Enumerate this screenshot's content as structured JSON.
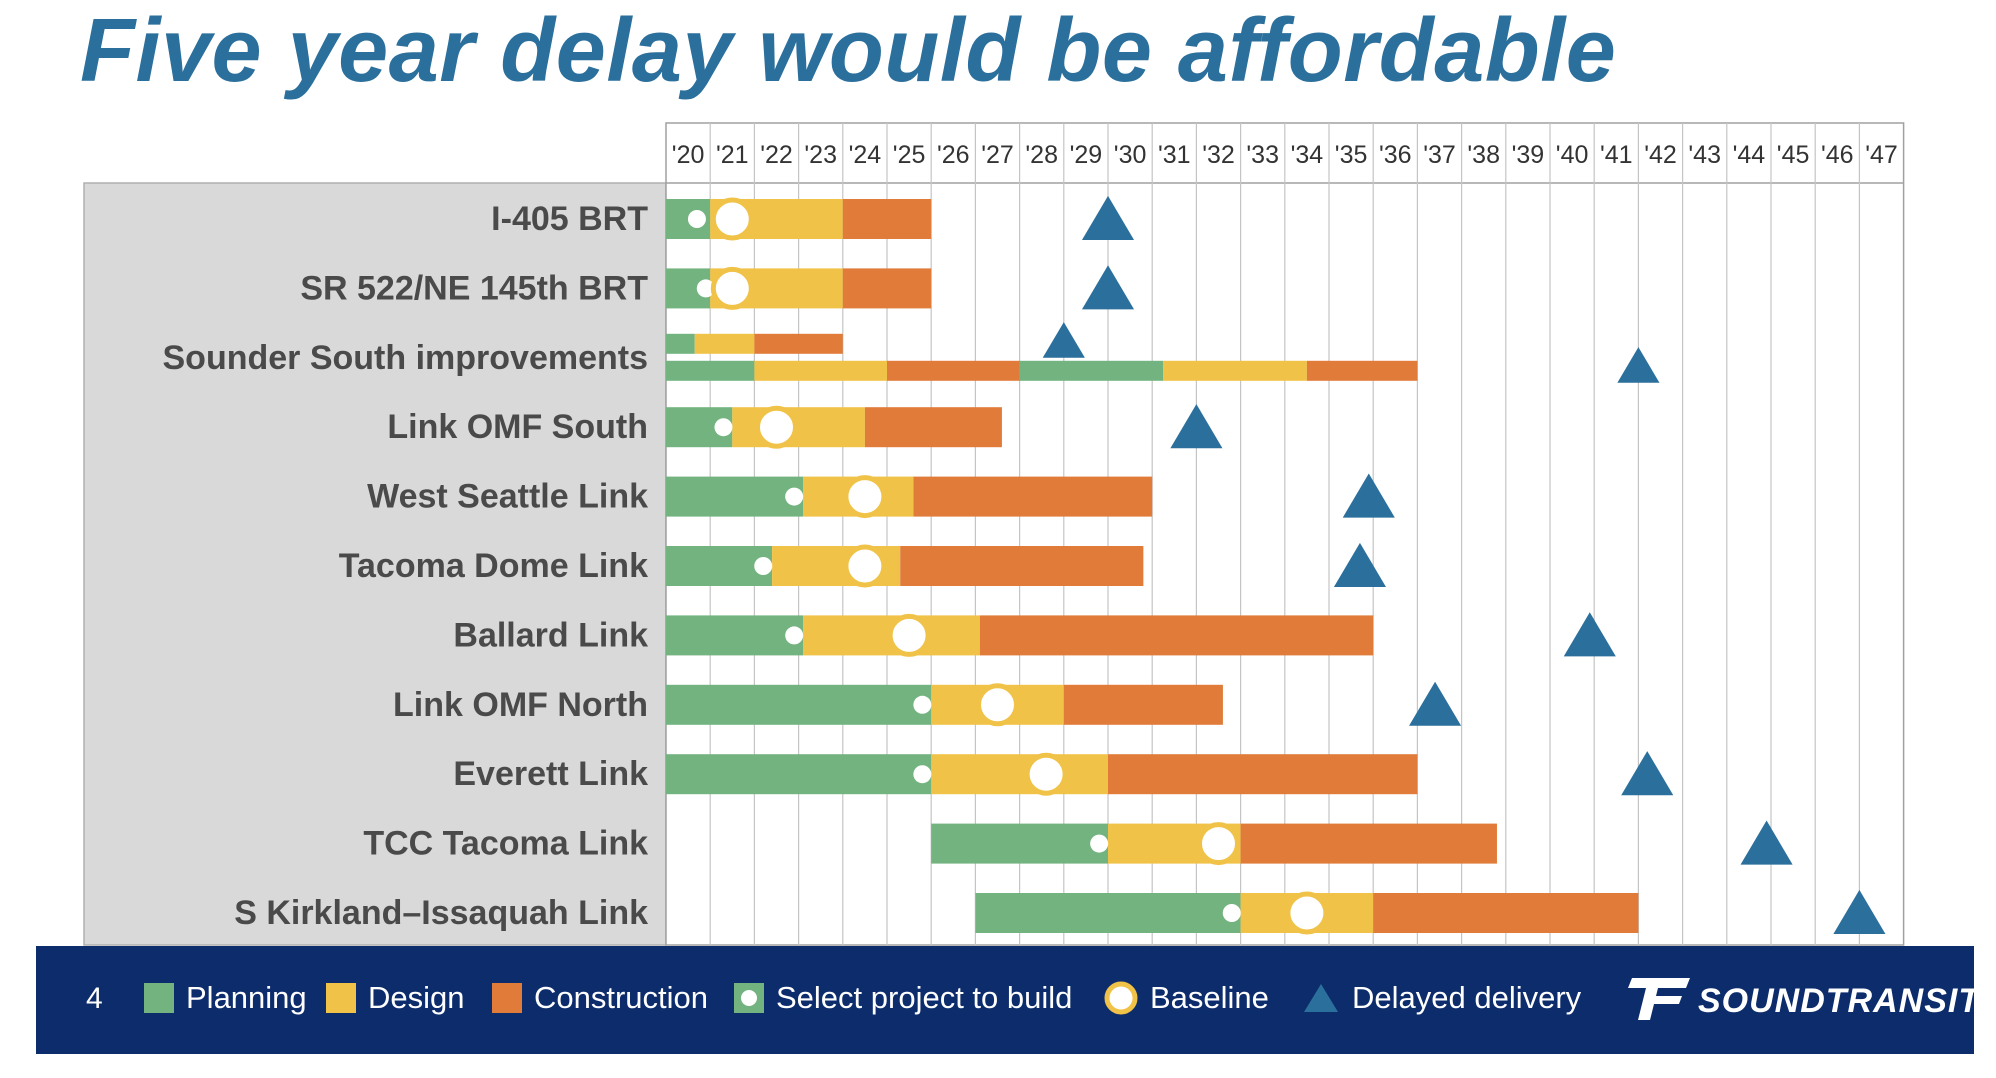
{
  "title": "Five year delay would be affordable",
  "footer": {
    "page_number": "4",
    "legend": {
      "planning": "Planning",
      "design": "Design",
      "construction": "Construction",
      "select": "Select project to build",
      "baseline": "Baseline",
      "delayed": "Delayed delivery"
    },
    "logo_text": "SOUNDTRANSIT"
  },
  "colors": {
    "planning": "#73B37F",
    "design": "#F0C247",
    "construction": "#E07B39",
    "delayed": "#2B6F9C",
    "baseline_ring": "#F0C247",
    "footer_bg": "#0D2C6C",
    "label_bg": "#D9D9D9"
  },
  "chart_data": {
    "type": "gantt",
    "title": "Five year delay would be affordable",
    "years": [
      "'20",
      "'21",
      "'22",
      "'23",
      "'24",
      "'25",
      "'26",
      "'27",
      "'28",
      "'29",
      "'30",
      "'31",
      "'32",
      "'33",
      "'34",
      "'35",
      "'36",
      "'37",
      "'38",
      "'39",
      "'40",
      "'41",
      "'42",
      "'43",
      "'44",
      "'45",
      "'46",
      "'47"
    ],
    "xlim": [
      2020,
      2048
    ],
    "projects": [
      {
        "name": "I-405 BRT",
        "bars": [
          {
            "planning": [
              2020.0,
              2021.0
            ],
            "design": [
              2021.0,
              2024.0
            ],
            "construction": [
              2024.0,
              2026.0
            ]
          }
        ],
        "select": 2020.7,
        "baseline": 2021.5,
        "delayed": 2030.0
      },
      {
        "name": "SR 522/NE 145th BRT",
        "bars": [
          {
            "planning": [
              2020.0,
              2021.0
            ],
            "design": [
              2021.0,
              2024.0
            ],
            "construction": [
              2024.0,
              2026.0
            ]
          }
        ],
        "select": 2020.9,
        "baseline": 2021.5,
        "delayed": 2030.0
      },
      {
        "name": "Sounder South improvements",
        "bars": [
          {
            "planning": [
              2020.0,
              2020.65
            ],
            "design": [
              2020.65,
              2022.0
            ],
            "construction": [
              2022.0,
              2024.0
            ]
          },
          {
            "planning": [
              2020.0,
              2022.0
            ],
            "design": [
              2022.0,
              2025.0
            ],
            "construction": [
              2025.0,
              2028.0
            ],
            "planning2": [
              2028.0,
              2031.25
            ],
            "design2": [
              2031.25,
              2034.5
            ],
            "construction2": [
              2034.5,
              2037.0
            ]
          }
        ],
        "delayed_row1": 2029.0,
        "delayed": 2042.0
      },
      {
        "name": "Link OMF South",
        "bars": [
          {
            "planning": [
              2020.0,
              2021.5
            ],
            "design": [
              2021.5,
              2024.5
            ],
            "construction": [
              2024.5,
              2027.6
            ]
          }
        ],
        "select": 2021.3,
        "baseline": 2022.5,
        "delayed": 2032.0
      },
      {
        "name": "West Seattle Link",
        "bars": [
          {
            "planning": [
              2020.0,
              2023.1
            ],
            "design": [
              2023.1,
              2025.6
            ],
            "construction": [
              2025.6,
              2031.0
            ]
          }
        ],
        "select": 2022.9,
        "baseline": 2024.5,
        "delayed": 2035.9
      },
      {
        "name": "Tacoma Dome Link",
        "bars": [
          {
            "planning": [
              2020.0,
              2022.4
            ],
            "design": [
              2022.4,
              2025.3
            ],
            "construction": [
              2025.3,
              2030.8
            ]
          }
        ],
        "select": 2022.2,
        "baseline": 2024.5,
        "delayed": 2035.7
      },
      {
        "name": "Ballard Link",
        "bars": [
          {
            "planning": [
              2020.0,
              2023.1
            ],
            "design": [
              2023.1,
              2027.1
            ],
            "construction": [
              2027.1,
              2036.0
            ]
          }
        ],
        "select": 2022.9,
        "baseline": 2025.5,
        "delayed": 2040.9
      },
      {
        "name": "Link OMF North",
        "bars": [
          {
            "planning": [
              2020.0,
              2026.0
            ],
            "design": [
              2026.0,
              2029.0
            ],
            "construction": [
              2029.0,
              2032.6
            ]
          }
        ],
        "select": 2025.8,
        "baseline": 2027.5,
        "delayed": 2037.4
      },
      {
        "name": "Everett Link",
        "bars": [
          {
            "planning": [
              2020.0,
              2026.0
            ],
            "design": [
              2026.0,
              2030.0
            ],
            "construction": [
              2030.0,
              2037.0
            ]
          }
        ],
        "select": 2025.8,
        "baseline": 2028.6,
        "delayed": 2042.2
      },
      {
        "name": "TCC Tacoma Link",
        "bars": [
          {
            "planning": [
              2026.0,
              2030.0
            ],
            "design": [
              2030.0,
              2033.0
            ],
            "construction": [
              2033.0,
              2038.8
            ]
          }
        ],
        "select": 2029.8,
        "baseline": 2032.5,
        "delayed": 2044.9
      },
      {
        "name": "S Kirkland–Issaquah Link",
        "bars": [
          {
            "planning": [
              2027.0,
              2033.0
            ],
            "design": [
              2033.0,
              2036.0
            ],
            "construction": [
              2036.0,
              2042.0
            ]
          }
        ],
        "select": 2032.8,
        "baseline": 2034.5,
        "delayed": 2047.0
      }
    ]
  }
}
